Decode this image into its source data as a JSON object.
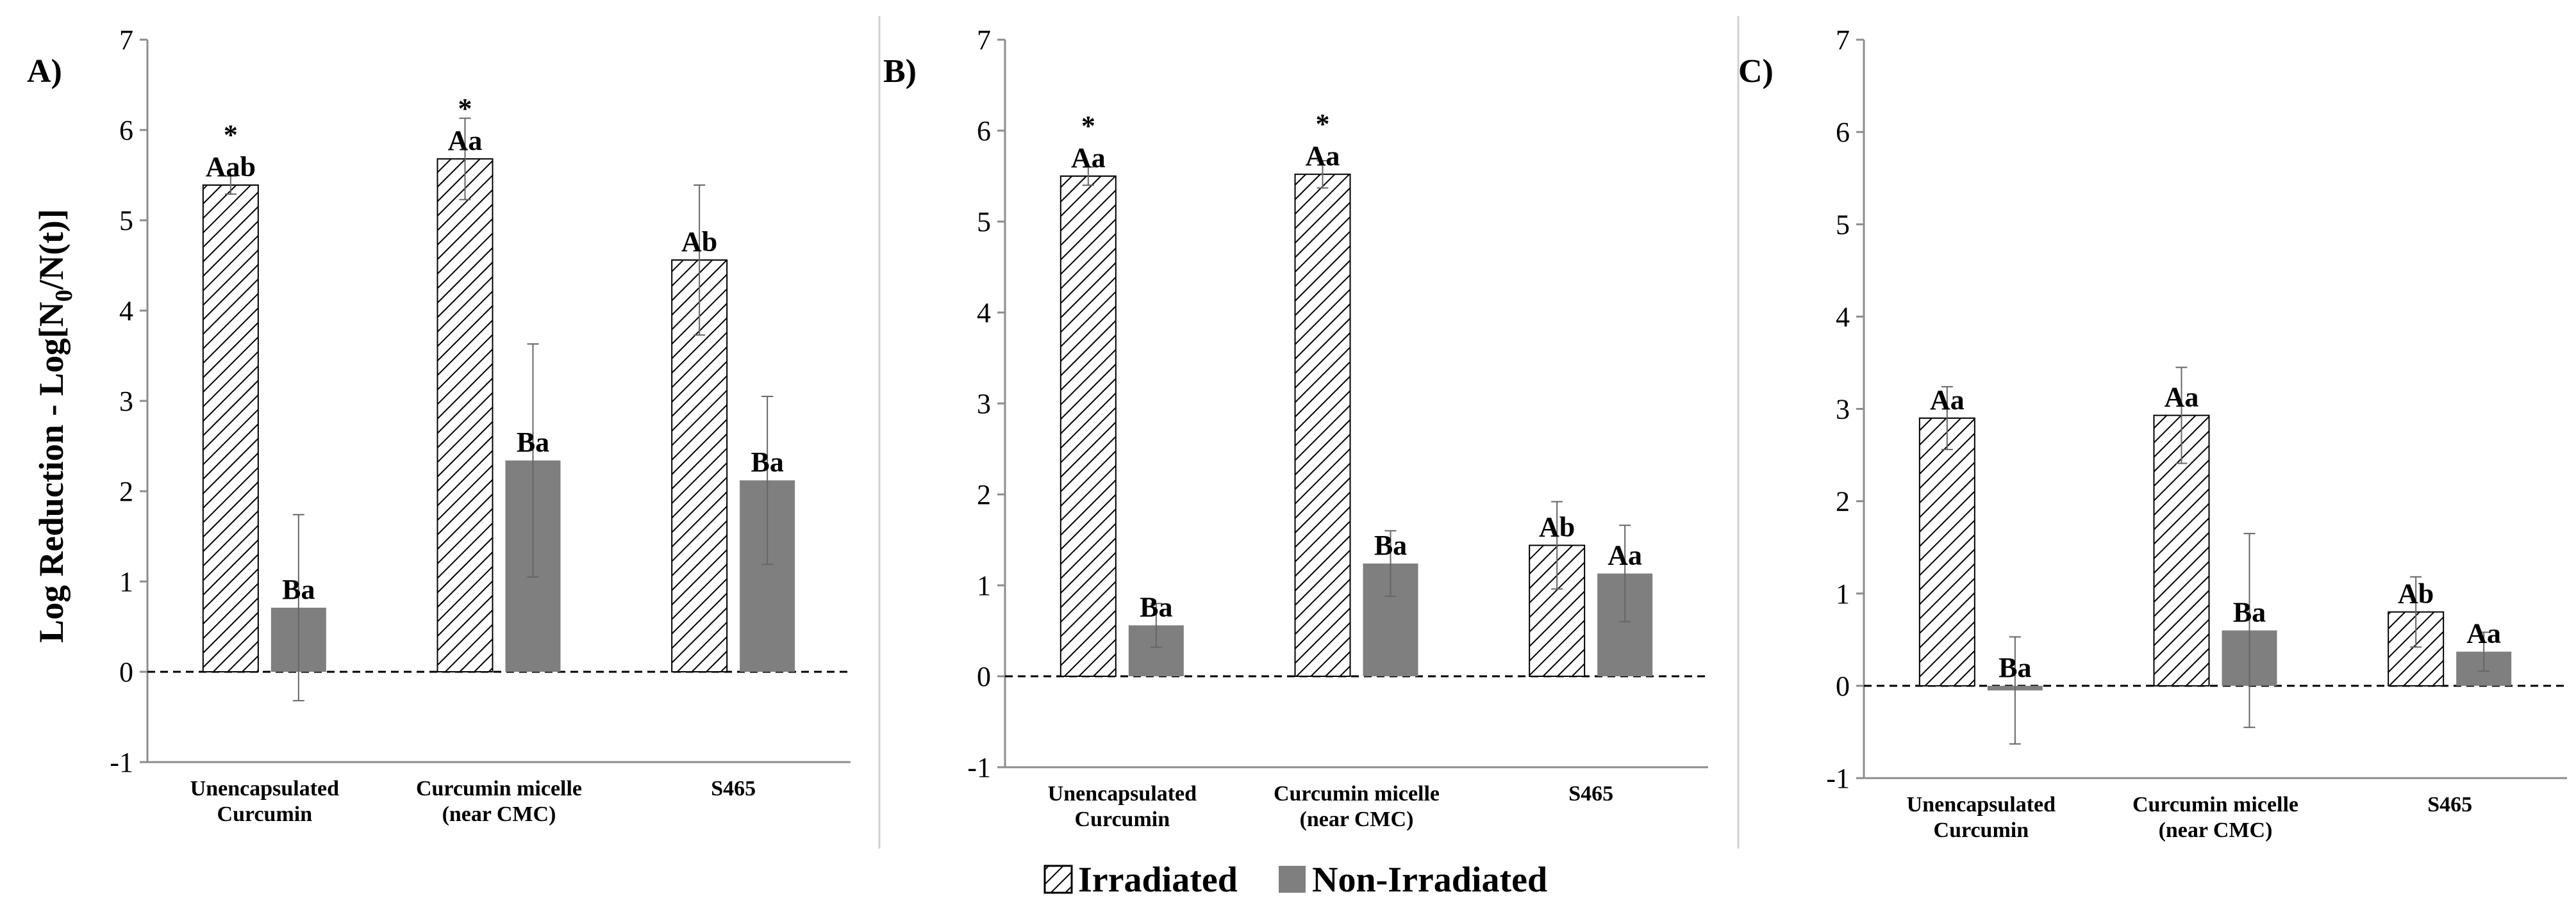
{
  "legend": {
    "irradiated_label": "Irradiated",
    "non_irradiated_label": "Non-Irradiated"
  },
  "colors": {
    "non_irradiated_fill": "#7f7f7f",
    "irradiated_stroke": "#000000",
    "error_bar": "#666666",
    "axis": "#8c8c8c",
    "divider": "#d0d0d0"
  },
  "chart_data": [
    {
      "type": "bar",
      "panel_label": "A)",
      "ylabel_main": "Log Reduction - Log[N",
      "ylabel_sub": "0",
      "ylabel_end": "/N(t)]",
      "ylim": [
        -1,
        7
      ],
      "yticks": [
        "-1",
        "0",
        "1",
        "2",
        "3",
        "4",
        "5",
        "6",
        "7"
      ],
      "reference_line": 0,
      "categories": [
        [
          "Unencapsulated",
          "Curcumin"
        ],
        [
          "Curcumin micelle",
          "(near CMC)"
        ],
        [
          "S465"
        ]
      ],
      "series": [
        {
          "name": "Irradiated",
          "values": [
            5.39,
            5.68,
            4.56
          ],
          "errors": [
            0.1,
            0.45,
            0.83
          ],
          "labels": [
            "Aab",
            "Aa",
            "Ab"
          ],
          "stars": [
            "*",
            "*",
            ""
          ]
        },
        {
          "name": "Non-Irradiated",
          "values": [
            0.71,
            2.34,
            2.12
          ],
          "errors": [
            1.03,
            1.29,
            0.93
          ],
          "labels": [
            "Ba",
            "Ba",
            "Ba"
          ],
          "stars": [
            "",
            "",
            ""
          ]
        }
      ]
    },
    {
      "type": "bar",
      "panel_label": "B)",
      "ylim": [
        -1,
        7
      ],
      "yticks": [
        "-1",
        "0",
        "1",
        "2",
        "3",
        "4",
        "5",
        "6",
        "7"
      ],
      "reference_line": 0,
      "categories": [
        [
          "Unencapsulated",
          "Curcumin"
        ],
        [
          "Curcumin micelle",
          "(near CMC)"
        ],
        [
          "S465"
        ]
      ],
      "series": [
        {
          "name": "Irradiated",
          "values": [
            5.5,
            5.52,
            1.44
          ],
          "errors": [
            0.1,
            0.15,
            0.48
          ],
          "labels": [
            "Aa",
            "Aa",
            "Ab"
          ],
          "stars": [
            "*",
            "*",
            ""
          ]
        },
        {
          "name": "Non-Irradiated",
          "values": [
            0.56,
            1.24,
            1.13
          ],
          "errors": [
            0.24,
            0.36,
            0.53
          ],
          "labels": [
            "Ba",
            "Ba",
            "Aa"
          ],
          "stars": [
            "",
            "",
            ""
          ]
        }
      ]
    },
    {
      "type": "bar",
      "panel_label": "C)",
      "ylim": [
        -1,
        7
      ],
      "yticks": [
        "-1",
        "0",
        "1",
        "2",
        "3",
        "4",
        "5",
        "6",
        "7"
      ],
      "reference_line": 0,
      "categories": [
        [
          "Unencapsulated",
          "Curcumin"
        ],
        [
          "Curcumin micelle",
          "(near CMC)"
        ],
        [
          "S465"
        ]
      ],
      "series": [
        {
          "name": "Irradiated",
          "values": [
            2.9,
            2.93,
            0.8
          ],
          "errors": [
            0.34,
            0.52,
            0.38
          ],
          "labels": [
            "Aa",
            "Aa",
            "Ab"
          ],
          "stars": [
            "",
            "",
            ""
          ]
        },
        {
          "name": "Non-Irradiated",
          "values": [
            -0.05,
            0.6,
            0.37
          ],
          "errors": [
            0.58,
            1.05,
            0.21
          ],
          "labels": [
            "Ba",
            "Ba",
            "Aa"
          ],
          "stars": [
            "",
            "",
            ""
          ]
        }
      ]
    }
  ]
}
